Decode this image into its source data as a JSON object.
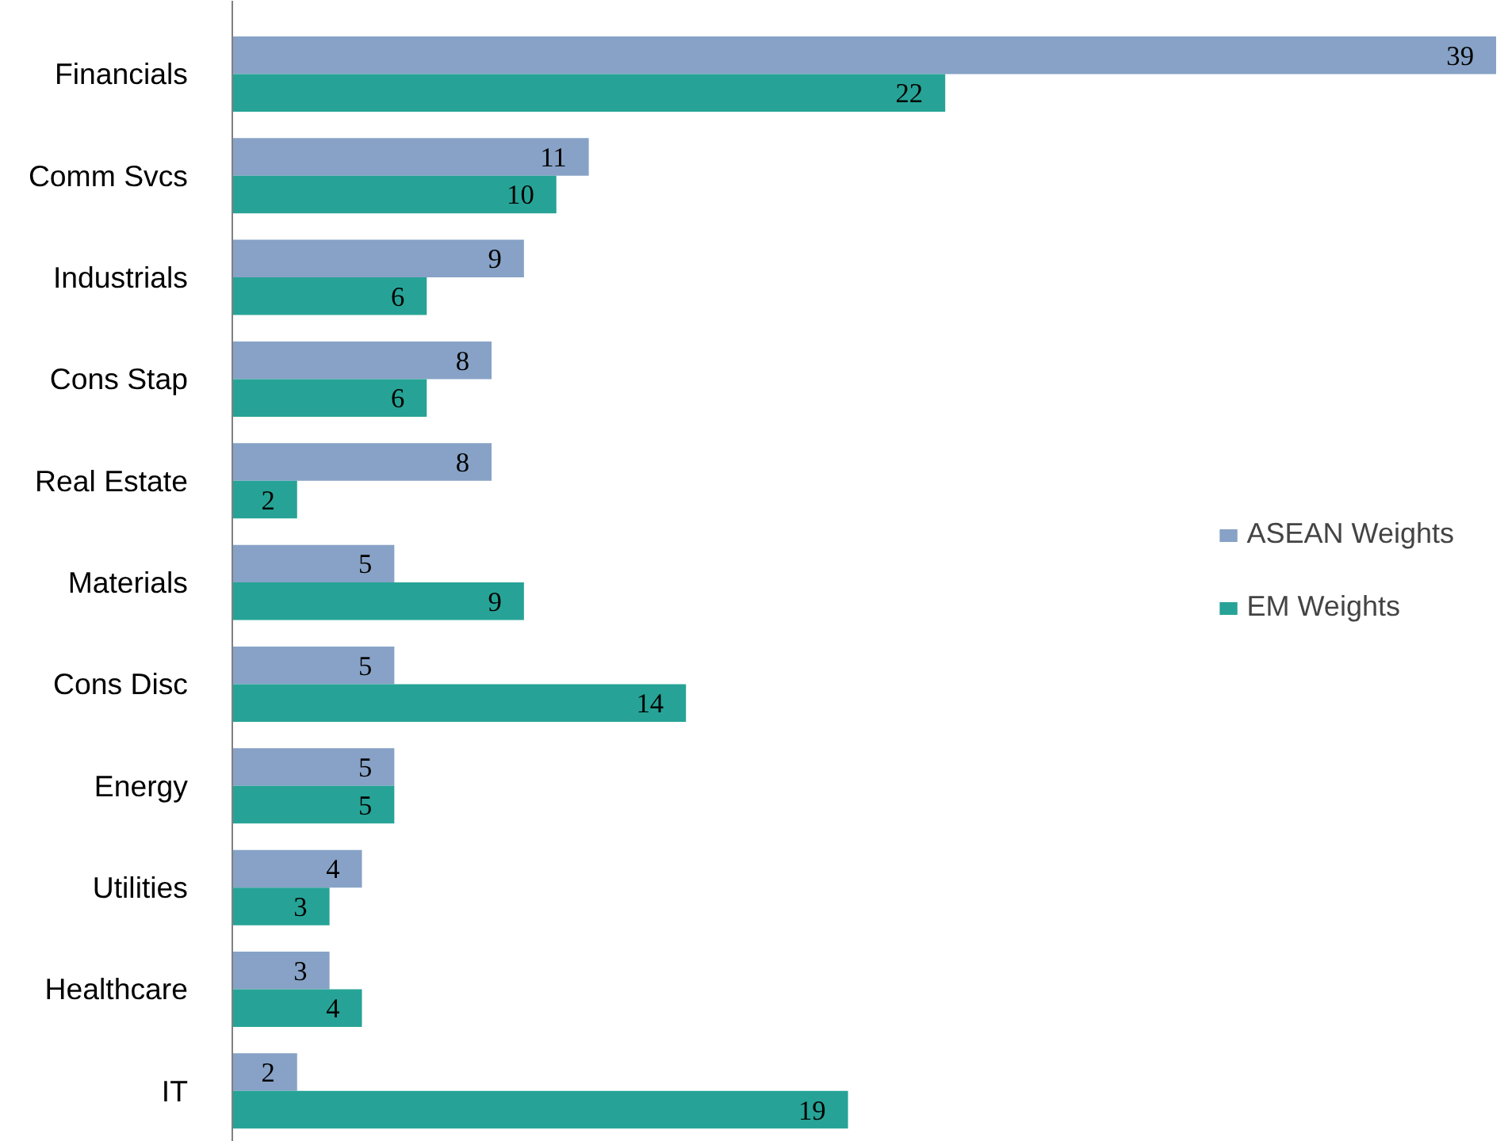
{
  "chart_data": {
    "type": "bar",
    "orientation": "horizontal",
    "categories": [
      "Financials",
      "Comm Svcs",
      "Industrials",
      "Cons Stap",
      "Real Estate",
      "Materials",
      "Cons Disc",
      "Energy",
      "Utilities",
      "Healthcare",
      "IT"
    ],
    "series": [
      {
        "name": "ASEAN Weights",
        "color": "#87a2c6",
        "values": [
          39,
          11,
          9,
          8,
          8,
          5,
          5,
          5,
          4,
          3,
          2
        ]
      },
      {
        "name": "EM Weights",
        "color": "#26a396",
        "values": [
          22,
          10,
          6,
          6,
          2,
          9,
          14,
          5,
          3,
          4,
          19
        ]
      }
    ],
    "data_labels": true,
    "legend": "right",
    "grid": false
  }
}
